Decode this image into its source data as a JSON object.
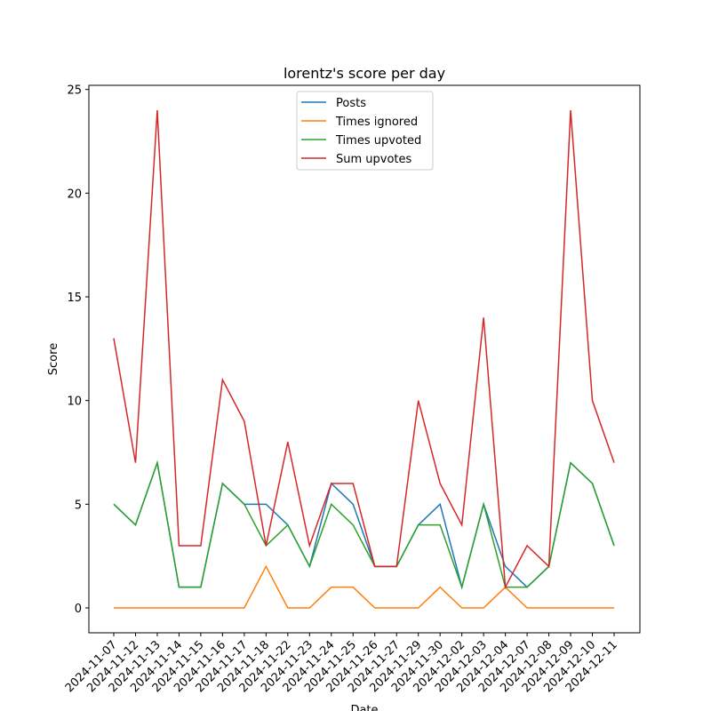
{
  "chart_data": {
    "type": "line",
    "title": "lorentz's score per day",
    "xlabel": "Date",
    "ylabel": "Score",
    "categories": [
      "2024-11-07",
      "2024-11-12",
      "2024-11-13",
      "2024-11-14",
      "2024-11-15",
      "2024-11-16",
      "2024-11-17",
      "2024-11-18",
      "2024-11-22",
      "2024-11-23",
      "2024-11-24",
      "2024-11-25",
      "2024-11-26",
      "2024-11-27",
      "2024-11-29",
      "2024-11-30",
      "2024-12-02",
      "2024-12-03",
      "2024-12-04",
      "2024-12-07",
      "2024-12-08",
      "2024-12-09",
      "2024-12-10",
      "2024-12-11"
    ],
    "series": [
      {
        "name": "Posts",
        "color": "#1f77b4",
        "values": [
          5,
          4,
          7,
          1,
          1,
          6,
          5,
          5,
          4,
          2,
          6,
          5,
          2,
          2,
          4,
          5,
          1,
          5,
          2,
          1,
          2,
          7,
          6,
          3
        ]
      },
      {
        "name": "Times ignored",
        "color": "#ff7f0e",
        "values": [
          0,
          0,
          0,
          0,
          0,
          0,
          0,
          2,
          0,
          0,
          1,
          1,
          0,
          0,
          0,
          1,
          0,
          0,
          1,
          0,
          0,
          0,
          0,
          0
        ]
      },
      {
        "name": "Times upvoted",
        "color": "#2ca02c",
        "values": [
          5,
          4,
          7,
          1,
          1,
          6,
          5,
          3,
          4,
          2,
          5,
          4,
          2,
          2,
          4,
          4,
          1,
          5,
          1,
          1,
          2,
          7,
          6,
          3
        ]
      },
      {
        "name": "Sum upvotes",
        "color": "#d62728",
        "values": [
          13,
          7,
          24,
          3,
          3,
          11,
          9,
          3,
          8,
          3,
          6,
          6,
          2,
          2,
          10,
          6,
          4,
          14,
          1,
          3,
          2,
          24,
          10,
          7
        ]
      }
    ],
    "ylim": [
      -1.2,
      25.2
    ],
    "yticks": [
      0,
      5,
      10,
      15,
      20,
      25
    ],
    "legend": "upper center",
    "grid": false
  }
}
